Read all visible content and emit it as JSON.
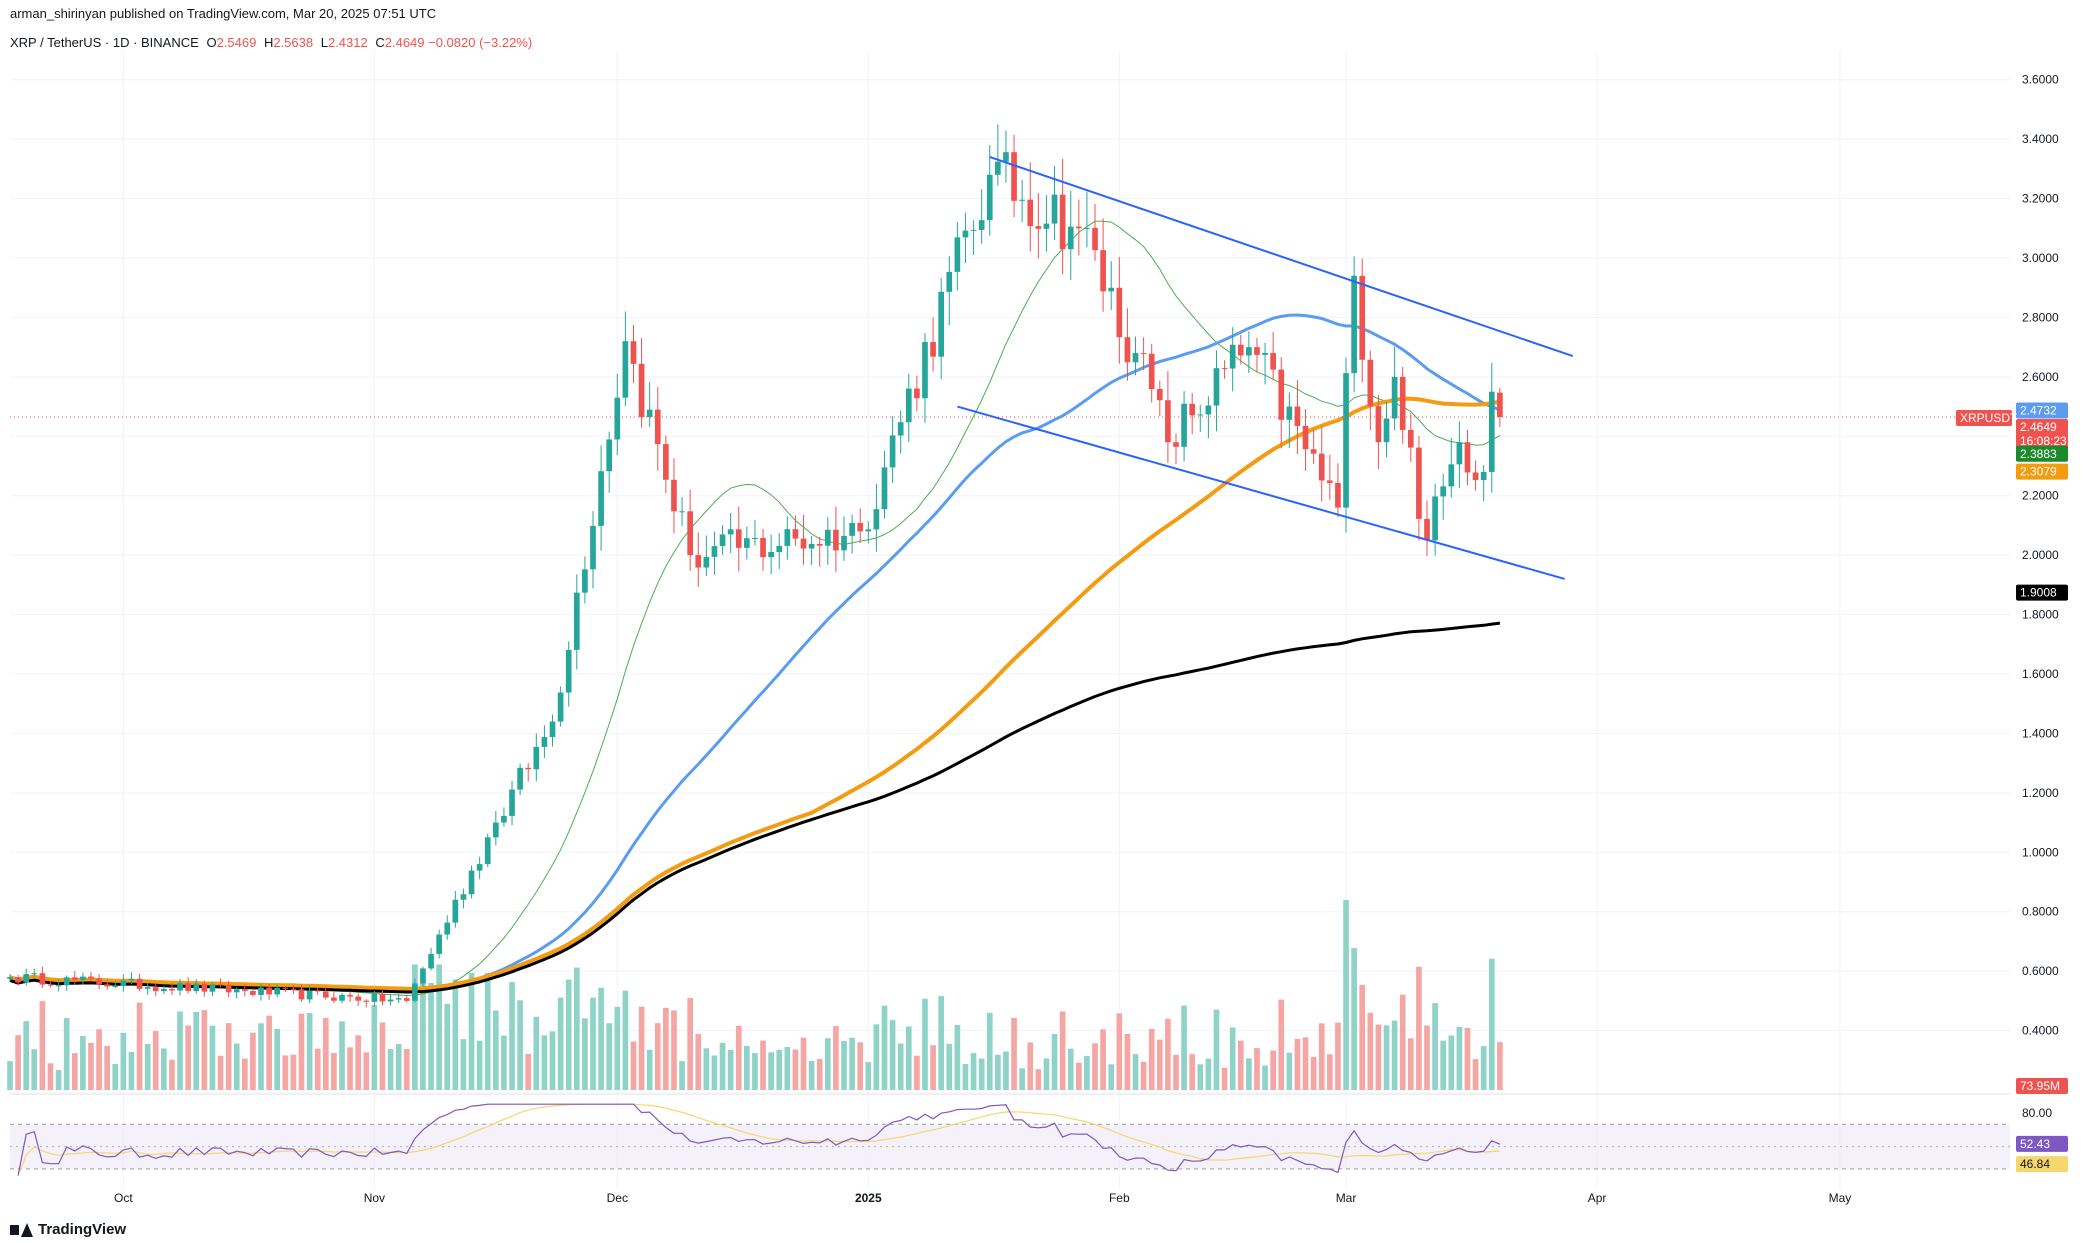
{
  "header": {
    "publisher": "arman_shirinyan published on TradingView.com, Mar 20, 2025 07:51 UTC",
    "symbol": "XRP / TetherUS · 1D · BINANCE",
    "ohlc": [
      {
        "label": "O",
        "value": "2.5469"
      },
      {
        "label": "H",
        "value": "2.5638"
      },
      {
        "label": "L",
        "value": "2.4312"
      },
      {
        "label": "C",
        "value": "2.4649 −0.0820 (−3.22%)"
      }
    ]
  },
  "footer": {
    "brand": "TradingView"
  },
  "colors": {
    "up": "#26a69a",
    "down": "#ef5350",
    "up_vol": "#8fd3c8",
    "down_vol": "#f4a6a4",
    "ma_fast": "#4caf50",
    "ma_50": "#5b9cf0",
    "ma_100": "#f39c12",
    "ma_200": "#000000",
    "channel": "#2962ff",
    "rsi": "#7e57c2",
    "rsi_ma": "#f5d76e"
  },
  "chart_data": {
    "type": "candlestick",
    "y_axis": {
      "ticks": [
        "3.6000",
        "3.4000",
        "3.2000",
        "3.0000",
        "2.8000",
        "2.6000",
        "2.4000",
        "2.2000",
        "2.0000",
        "1.8000",
        "1.6000",
        "1.4000",
        "1.2000",
        "1.0000",
        "0.8000",
        "0.6000",
        "0.4000"
      ],
      "range": [
        0.2,
        3.7
      ]
    },
    "x_axis": {
      "labels": [
        {
          "text": "Oct",
          "date": "2024-10-01"
        },
        {
          "text": "Nov",
          "date": "2024-11-01"
        },
        {
          "text": "Dec",
          "date": "2024-12-01"
        },
        {
          "text": "2025",
          "date": "2025-01-01"
        },
        {
          "text": "Feb",
          "date": "2025-02-01"
        },
        {
          "text": "Mar",
          "date": "2025-03-01"
        },
        {
          "text": "Apr",
          "date": "2025-04-01"
        },
        {
          "text": "May",
          "date": "2025-05-01"
        }
      ],
      "range": [
        "2024-09-17",
        "2025-05-22"
      ]
    },
    "price_labels": [
      {
        "text": "2.4732",
        "price": 2.4732,
        "color": "#5b9cf0"
      },
      {
        "text": "XRPUSDT",
        "price": 2.4649,
        "color": "#ef5350"
      },
      {
        "text": "2.4649",
        "price": 2.4649,
        "color": "#ef5350"
      },
      {
        "text": "16:08:23",
        "price": 2.4649,
        "color": "#ef5350"
      },
      {
        "text": "2.3883",
        "price": 2.3883,
        "color": "#1b8a2a"
      },
      {
        "text": "2.3079",
        "price": 2.3079,
        "color": "#f39c12"
      },
      {
        "text": "1.9008",
        "price": 1.9008,
        "color": "#000000"
      }
    ],
    "volume_label": "73.95M",
    "rsi": {
      "ticks": [
        "80.00"
      ],
      "labels": [
        {
          "text": "52.43",
          "value": 52.43
        },
        {
          "text": "46.84",
          "value": 46.84
        }
      ]
    },
    "key_points": [
      {
        "date": "2024-09-17",
        "price": 0.58
      },
      {
        "date": "2024-11-05",
        "price": 0.5
      },
      {
        "date": "2024-11-16",
        "price": 1.1
      },
      {
        "date": "2024-11-23",
        "price": 1.44
      },
      {
        "date": "2024-12-02",
        "price": 2.72
      },
      {
        "date": "2024-12-10",
        "price": 2.0
      },
      {
        "date": "2024-12-31",
        "price": 2.08
      },
      {
        "date": "2025-01-16",
        "price": 3.28
      },
      {
        "date": "2025-01-27",
        "price": 3.1
      },
      {
        "date": "2025-02-03",
        "price": 2.68
      },
      {
        "date": "2025-02-07",
        "price": 2.38
      },
      {
        "date": "2025-02-17",
        "price": 2.7
      },
      {
        "date": "2025-02-28",
        "price": 2.16
      },
      {
        "date": "2025-03-02",
        "price": 2.94
      },
      {
        "date": "2025-03-05",
        "price": 2.38
      },
      {
        "date": "2025-03-07",
        "price": 2.6
      },
      {
        "date": "2025-03-11",
        "price": 2.05
      },
      {
        "date": "2025-03-15",
        "price": 2.38
      },
      {
        "date": "2025-03-18",
        "price": 2.28
      },
      {
        "date": "2025-03-19",
        "price": 2.55
      },
      {
        "date": "2025-03-20",
        "price": 2.465
      }
    ],
    "channel_lines": [
      {
        "from": {
          "date": "2025-01-16",
          "price": 3.34
        },
        "to": {
          "date": "2025-03-29",
          "price": 2.67
        }
      },
      {
        "from": {
          "date": "2025-01-12",
          "price": 2.5
        },
        "to": {
          "date": "2025-03-28",
          "price": 1.92
        }
      }
    ]
  }
}
